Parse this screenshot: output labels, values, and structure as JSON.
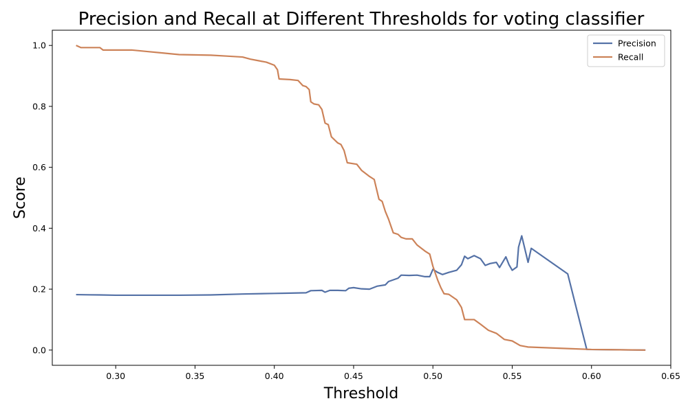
{
  "chart_data": {
    "type": "line",
    "title": "Precision and Recall at Different Thresholds for voting classifier",
    "xlabel": "Threshold",
    "ylabel": "Score",
    "xlim": [
      0.26,
      0.65
    ],
    "ylim": [
      -0.05,
      1.05
    ],
    "xticks": [
      0.3,
      0.35,
      0.4,
      0.45,
      0.5,
      0.55,
      0.6,
      0.65
    ],
    "xtick_labels": [
      "0.30",
      "0.35",
      "0.40",
      "0.45",
      "0.50",
      "0.55",
      "0.60",
      "0.65"
    ],
    "yticks": [
      0.0,
      0.2,
      0.4,
      0.6,
      0.8,
      1.0
    ],
    "ytick_labels": [
      "0.0",
      "0.2",
      "0.4",
      "0.6",
      "0.8",
      "1.0"
    ],
    "grid": false,
    "legend_position": "top-right",
    "series": [
      {
        "name": "Precision",
        "color": "#5471a6",
        "points": [
          [
            0.275,
            0.182
          ],
          [
            0.29,
            0.181
          ],
          [
            0.3,
            0.18
          ],
          [
            0.32,
            0.18
          ],
          [
            0.34,
            0.18
          ],
          [
            0.36,
            0.181
          ],
          [
            0.38,
            0.184
          ],
          [
            0.4,
            0.186
          ],
          [
            0.41,
            0.187
          ],
          [
            0.42,
            0.188
          ],
          [
            0.423,
            0.195
          ],
          [
            0.43,
            0.196
          ],
          [
            0.432,
            0.19
          ],
          [
            0.435,
            0.196
          ],
          [
            0.44,
            0.196
          ],
          [
            0.445,
            0.195
          ],
          [
            0.447,
            0.203
          ],
          [
            0.45,
            0.205
          ],
          [
            0.455,
            0.201
          ],
          [
            0.46,
            0.2
          ],
          [
            0.465,
            0.21
          ],
          [
            0.47,
            0.214
          ],
          [
            0.472,
            0.225
          ],
          [
            0.478,
            0.236
          ],
          [
            0.48,
            0.246
          ],
          [
            0.485,
            0.245
          ],
          [
            0.49,
            0.246
          ],
          [
            0.495,
            0.241
          ],
          [
            0.498,
            0.241
          ],
          [
            0.5,
            0.265
          ],
          [
            0.503,
            0.255
          ],
          [
            0.506,
            0.248
          ],
          [
            0.51,
            0.255
          ],
          [
            0.515,
            0.262
          ],
          [
            0.518,
            0.28
          ],
          [
            0.52,
            0.308
          ],
          [
            0.522,
            0.3
          ],
          [
            0.526,
            0.31
          ],
          [
            0.53,
            0.3
          ],
          [
            0.533,
            0.278
          ],
          [
            0.536,
            0.284
          ],
          [
            0.54,
            0.288
          ],
          [
            0.542,
            0.271
          ],
          [
            0.546,
            0.306
          ],
          [
            0.548,
            0.28
          ],
          [
            0.55,
            0.262
          ],
          [
            0.553,
            0.273
          ],
          [
            0.554,
            0.338
          ],
          [
            0.556,
            0.375
          ],
          [
            0.56,
            0.288
          ],
          [
            0.562,
            0.334
          ],
          [
            0.585,
            0.25
          ],
          [
            0.597,
            0.002
          ],
          [
            0.634,
            0.0
          ]
        ]
      },
      {
        "name": "Recall",
        "color": "#cc8258",
        "points": [
          [
            0.275,
            1.0
          ],
          [
            0.278,
            0.993
          ],
          [
            0.29,
            0.993
          ],
          [
            0.292,
            0.985
          ],
          [
            0.31,
            0.985
          ],
          [
            0.32,
            0.98
          ],
          [
            0.33,
            0.975
          ],
          [
            0.34,
            0.97
          ],
          [
            0.36,
            0.968
          ],
          [
            0.37,
            0.965
          ],
          [
            0.38,
            0.962
          ],
          [
            0.385,
            0.955
          ],
          [
            0.39,
            0.95
          ],
          [
            0.395,
            0.945
          ],
          [
            0.4,
            0.935
          ],
          [
            0.402,
            0.92
          ],
          [
            0.403,
            0.89
          ],
          [
            0.41,
            0.888
          ],
          [
            0.415,
            0.885
          ],
          [
            0.418,
            0.868
          ],
          [
            0.42,
            0.865
          ],
          [
            0.422,
            0.855
          ],
          [
            0.423,
            0.815
          ],
          [
            0.425,
            0.808
          ],
          [
            0.428,
            0.805
          ],
          [
            0.43,
            0.79
          ],
          [
            0.432,
            0.745
          ],
          [
            0.434,
            0.74
          ],
          [
            0.436,
            0.7
          ],
          [
            0.44,
            0.68
          ],
          [
            0.442,
            0.675
          ],
          [
            0.444,
            0.655
          ],
          [
            0.446,
            0.615
          ],
          [
            0.452,
            0.61
          ],
          [
            0.455,
            0.59
          ],
          [
            0.46,
            0.57
          ],
          [
            0.463,
            0.56
          ],
          [
            0.466,
            0.495
          ],
          [
            0.468,
            0.488
          ],
          [
            0.47,
            0.455
          ],
          [
            0.472,
            0.43
          ],
          [
            0.475,
            0.385
          ],
          [
            0.478,
            0.38
          ],
          [
            0.48,
            0.37
          ],
          [
            0.483,
            0.365
          ],
          [
            0.487,
            0.365
          ],
          [
            0.49,
            0.345
          ],
          [
            0.495,
            0.325
          ],
          [
            0.498,
            0.315
          ],
          [
            0.5,
            0.275
          ],
          [
            0.503,
            0.23
          ],
          [
            0.505,
            0.205
          ],
          [
            0.507,
            0.185
          ],
          [
            0.51,
            0.183
          ],
          [
            0.515,
            0.165
          ],
          [
            0.518,
            0.14
          ],
          [
            0.52,
            0.1
          ],
          [
            0.526,
            0.1
          ],
          [
            0.53,
            0.085
          ],
          [
            0.535,
            0.065
          ],
          [
            0.54,
            0.055
          ],
          [
            0.545,
            0.035
          ],
          [
            0.55,
            0.03
          ],
          [
            0.555,
            0.015
          ],
          [
            0.56,
            0.01
          ],
          [
            0.585,
            0.005
          ],
          [
            0.6,
            0.002
          ],
          [
            0.634,
            0.0
          ]
        ]
      }
    ]
  }
}
